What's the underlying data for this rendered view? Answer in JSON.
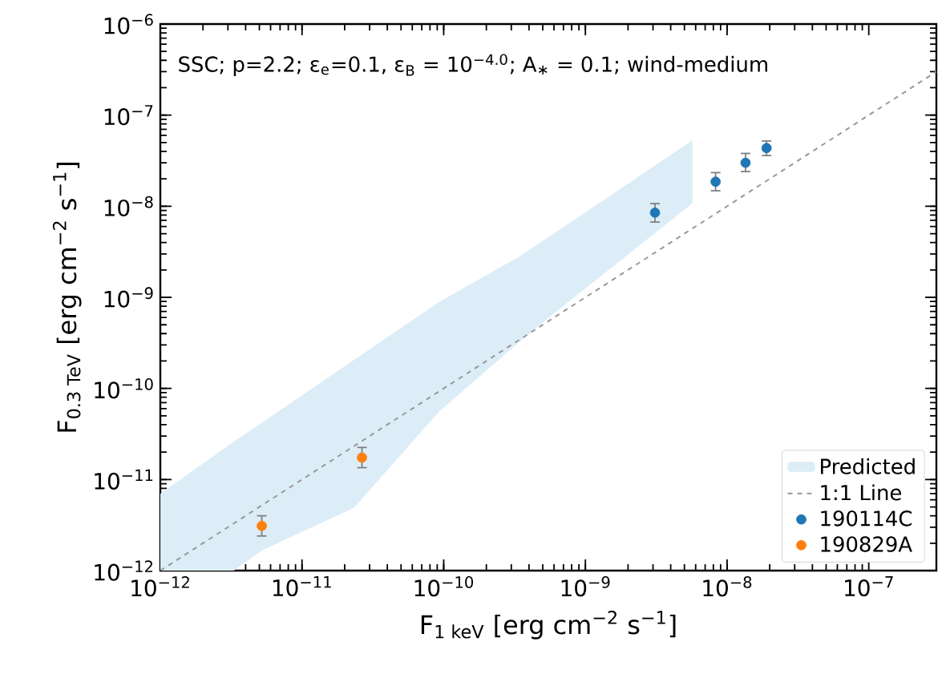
{
  "chart_data": {
    "type": "scatter",
    "xlabel": "F$_{1 keV}$ [erg cm$^{−2}$ s$^{−1}$]",
    "ylabel": "F$_{0.3 TeV}$ [erg cm$^{−2}$ s$^{−1}$]",
    "annotations": [
      "SSC; p=2.2; ε$_{e}$=0.1, ε$_{B}$ = 10$^{−4.0}$; A$_{∗}$ = 0.1; wind-medium"
    ],
    "log": "xy",
    "grid": false,
    "legend": "bottom right",
    "xlim": [
      1e-12,
      3e-07
    ],
    "ylim": [
      1e-12,
      1e-06
    ],
    "xticks": [
      {
        "value": 1e-12,
        "label": "10$^{−12}$"
      },
      {
        "value": 1e-11,
        "label": "10$^{−11}$"
      },
      {
        "value": 1e-10,
        "label": "10$^{−10}$"
      },
      {
        "value": 1e-09,
        "label": "10$^{−9}$"
      },
      {
        "value": 1e-08,
        "label": "10$^{−8}$"
      },
      {
        "value": 1e-07,
        "label": "10$^{−7}$"
      }
    ],
    "yticks": [
      {
        "value": 1e-12,
        "label": "10$^{−12}$"
      },
      {
        "value": 1e-11,
        "label": "10$^{−11}$"
      },
      {
        "value": 1e-10,
        "label": "10$^{−10}$"
      },
      {
        "value": 1e-09,
        "label": "10$^{−9}$"
      },
      {
        "value": 1e-08,
        "label": "10$^{−8}$"
      },
      {
        "value": 1e-07,
        "label": "10$^{−7}$"
      },
      {
        "value": 1e-06,
        "label": "10$^{−6}$"
      }
    ],
    "series": [
      {
        "type": "area",
        "name": "Predicted",
        "color": "#dcedf8",
        "marker": "none",
        "x": [
          1e-12,
          3.3e-12,
          5.2e-12,
          2.33e-11,
          9.3e-11,
          3.4e-10,
          5.75e-10,
          5.7e-09
        ],
        "lower": [
          1e-12,
          1e-12,
          1.66e-12,
          4.9e-12,
          5.6e-11,
          3.2e-10,
          6.3e-10,
          1.08e-08
        ],
        "values": [
          null,
          null,
          null,
          null,
          null,
          null,
          null,
          null
        ],
        "upper": [
          7e-12,
          2.6e-11,
          4.2e-11,
          2.06e-10,
          8.9e-10,
          2.8e-09,
          4.8e-09,
          5.3e-08
        ]
      },
      {
        "type": "line",
        "name": "1:1 Line",
        "color": "#999999",
        "line_style": "dashed",
        "marker": "none",
        "x": [
          1e-12,
          3e-07
        ],
        "values": [
          1e-12,
          3e-07
        ]
      },
      {
        "name": "190114C",
        "marker": "circle",
        "color": "#1f77b4",
        "x": [
          3.1e-09,
          8.3e-09,
          1.35e-08,
          1.9e-08
        ],
        "values": [
          8.5e-09,
          1.86e-08,
          3e-08,
          4.35e-08
        ],
        "errors": [
          [
            6.7e-09,
            1.07e-08
          ],
          [
            1.48e-08,
            2.34e-08
          ],
          [
            2.4e-08,
            3.8e-08
          ],
          [
            3.6e-08,
            5.2e-08
          ]
        ]
      },
      {
        "name": "190829A",
        "marker": "circle",
        "color": "#ff7f0e",
        "x": [
          5.2e-12,
          2.65e-11
        ],
        "values": [
          3.1e-12,
          1.74e-11
        ],
        "errors": [
          [
            2.4e-12,
            4e-12
          ],
          [
            1.35e-11,
            2.25e-11
          ]
        ]
      }
    ]
  }
}
